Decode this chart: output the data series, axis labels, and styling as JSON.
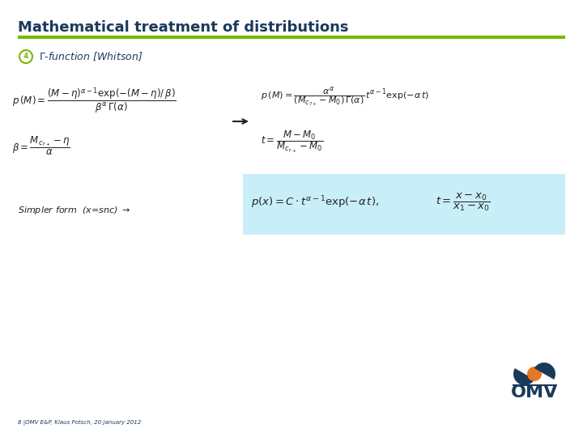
{
  "title": "Mathematical treatment of distributions",
  "title_color": "#1a3a5c",
  "title_fontsize": 13,
  "line_color": "#7ab800",
  "background_color": "#ffffff",
  "bullet_color": "#7ab800",
  "subtitle_color": "#1a3a5c",
  "footer_text": "8 |OMV E&P, Klaus Potsch, 20 January 2012",
  "footer_color": "#1a3a5c",
  "box_color": "#c8eef8",
  "text_color": "#222222",
  "omv_blue": "#1a3a5c"
}
